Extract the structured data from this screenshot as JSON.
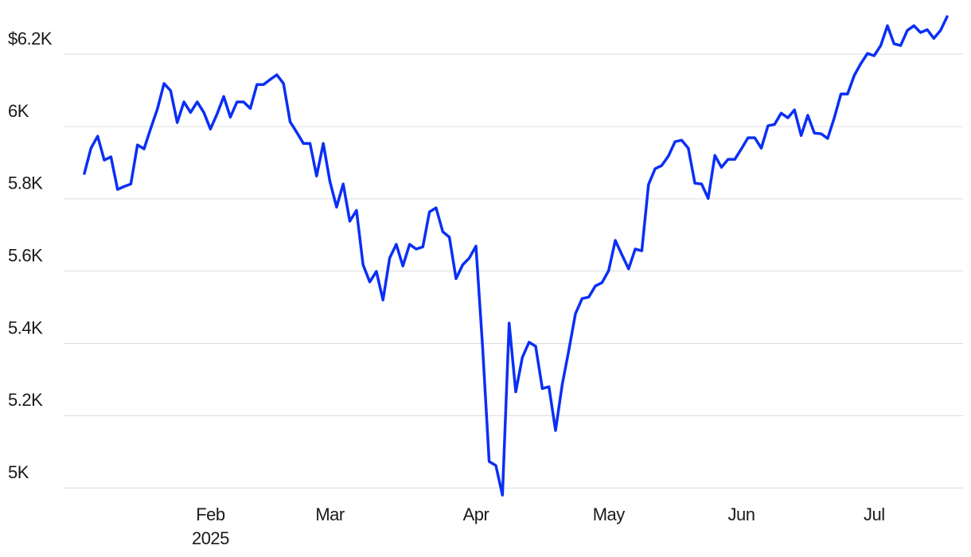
{
  "chart_data": {
    "type": "line",
    "categories": [
      null,
      null,
      null,
      null,
      null,
      null,
      null,
      null,
      null,
      null,
      null,
      null,
      null,
      null,
      null,
      null,
      null,
      null,
      null,
      "Feb",
      null,
      null,
      null,
      null,
      null,
      null,
      null,
      null,
      null,
      null,
      null,
      null,
      null,
      null,
      null,
      null,
      null,
      "Mar",
      null,
      null,
      null,
      null,
      null,
      null,
      null,
      null,
      null,
      null,
      null,
      null,
      null,
      null,
      null,
      null,
      null,
      null,
      null,
      null,
      null,
      "Apr",
      null,
      null,
      null,
      null,
      null,
      null,
      null,
      null,
      null,
      null,
      null,
      null,
      null,
      null,
      null,
      null,
      null,
      null,
      null,
      "May",
      null,
      null,
      null,
      null,
      null,
      null,
      null,
      null,
      null,
      null,
      null,
      null,
      null,
      null,
      null,
      null,
      null,
      null,
      null,
      "Jun",
      null,
      null,
      null,
      null,
      null,
      null,
      null,
      null,
      null,
      null,
      null,
      null,
      null,
      null,
      null,
      null,
      null,
      null,
      null,
      "Jul",
      null,
      null,
      null,
      null,
      null,
      null,
      null,
      null,
      null,
      null,
      null
    ],
    "x_sublabel": "2025",
    "values": [
      5870,
      5940,
      5973,
      5907,
      5916,
      5826,
      5834,
      5841,
      5949,
      5938,
      5995,
      6048,
      6119,
      6099,
      6011,
      6068,
      6039,
      6068,
      6039,
      5993,
      6035,
      6083,
      6026,
      6068,
      6068,
      6050,
      6116,
      6116,
      6130,
      6143,
      6119,
      6013,
      5984,
      5953,
      5953,
      5863,
      5953,
      5848,
      5777,
      5841,
      5738,
      5768,
      5617,
      5570,
      5599,
      5520,
      5636,
      5674,
      5614,
      5674,
      5661,
      5667,
      5764,
      5775,
      5709,
      5694,
      5579,
      5617,
      5636,
      5669,
      5392,
      5073,
      5062,
      4980,
      5456,
      5266,
      5361,
      5403,
      5392,
      5275,
      5280,
      5159,
      5286,
      5381,
      5482,
      5524,
      5528,
      5559,
      5568,
      5601,
      5685,
      5645,
      5606,
      5661,
      5656,
      5839,
      5883,
      5892,
      5918,
      5958,
      5962,
      5940,
      5843,
      5841,
      5801,
      5920,
      5887,
      5909,
      5909,
      5938,
      5969,
      5969,
      5940,
      6002,
      6006,
      6037,
      6024,
      6046,
      5975,
      6031,
      5982,
      5980,
      5967,
      6024,
      6090,
      6090,
      6141,
      6174,
      6202,
      6196,
      6224,
      6279,
      6229,
      6224,
      6266,
      6279,
      6260,
      6268,
      6244,
      6266,
      6304
    ],
    "color": "#0a2ff5",
    "ylim": [
      4974,
      6328
    ],
    "yticks": [
      {
        "value": 5000,
        "label": "5K"
      },
      {
        "value": 5200,
        "label": "5.2K"
      },
      {
        "value": 5400,
        "label": "5.4K"
      },
      {
        "value": 5600,
        "label": "5.6K"
      },
      {
        "value": 5800,
        "label": "5.8K"
      },
      {
        "value": 6000,
        "label": "6K"
      },
      {
        "value": 6200,
        "label": "$6.2K"
      }
    ],
    "grid": true
  }
}
